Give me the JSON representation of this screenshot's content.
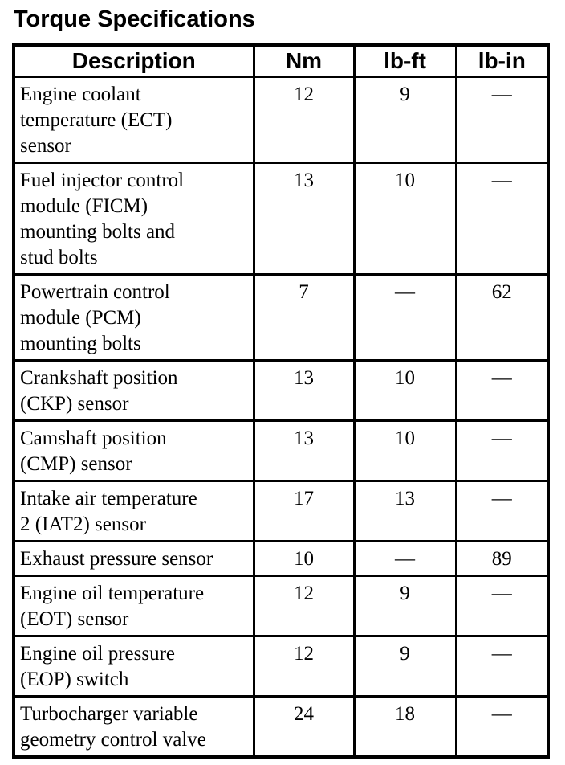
{
  "page_title": "Torque Specifications",
  "table": {
    "headers": {
      "description": "Description",
      "nm": "Nm",
      "lb_ft": "lb-ft",
      "lb_in": "lb-in"
    },
    "rows": [
      {
        "description": "Engine coolant\ntemperature (ECT)\nsensor",
        "nm": "12",
        "lb_ft": "9",
        "lb_in": "—"
      },
      {
        "description": "Fuel injector control\nmodule (FICM)\nmounting bolts and\nstud bolts",
        "nm": "13",
        "lb_ft": "10",
        "lb_in": "—"
      },
      {
        "description": "Powertrain control\nmodule (PCM)\nmounting bolts",
        "nm": "7",
        "lb_ft": "—",
        "lb_in": "62"
      },
      {
        "description": "Crankshaft position\n(CKP) sensor",
        "nm": "13",
        "lb_ft": "10",
        "lb_in": "—"
      },
      {
        "description": "Camshaft position\n(CMP) sensor",
        "nm": "13",
        "lb_ft": "10",
        "lb_in": "—"
      },
      {
        "description": "Intake air temperature\n2 (IAT2) sensor",
        "nm": "17",
        "lb_ft": "13",
        "lb_in": "—"
      },
      {
        "description": "Exhaust pressure sensor",
        "nm": "10",
        "lb_ft": "—",
        "lb_in": "89"
      },
      {
        "description": "Engine oil temperature\n(EOT) sensor",
        "nm": "12",
        "lb_ft": "9",
        "lb_in": "—"
      },
      {
        "description": "Engine oil pressure\n(EOP) switch",
        "nm": "12",
        "lb_ft": "9",
        "lb_in": "—"
      },
      {
        "description": "Turbocharger variable\ngeometry control valve",
        "nm": "24",
        "lb_ft": "18",
        "lb_in": "—"
      }
    ]
  },
  "colors": {
    "text": "#000000",
    "background": "#ffffff",
    "border": "#000000"
  }
}
